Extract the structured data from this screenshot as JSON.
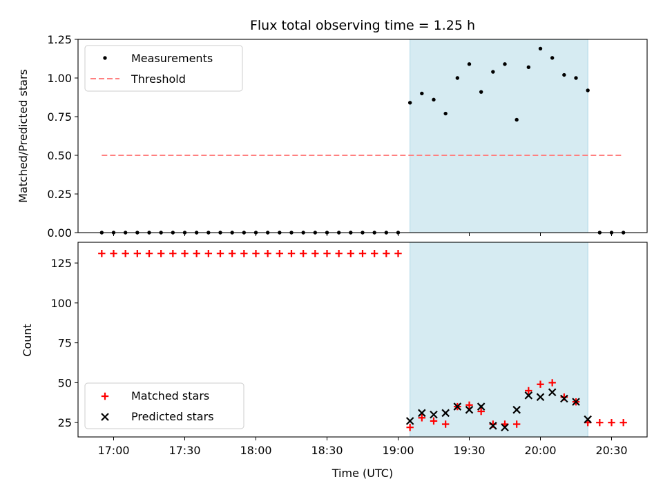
{
  "title": "Flux total observing time = 1.25 h",
  "colors": {
    "shade": "#add8e6",
    "measurement": "#000000",
    "threshold": "#ff8080",
    "matched": "#ff0000",
    "predicted": "#000000"
  },
  "chart_data": [
    {
      "type": "scatter",
      "panel": "top",
      "ylabel": "Matched/Predicted stars",
      "ylim": [
        0,
        1.25
      ],
      "yticks": [
        "0.00",
        "0.25",
        "0.50",
        "0.75",
        "1.00",
        "1.25"
      ],
      "legend": {
        "placement": "upper-left",
        "entries": [
          "Measurements",
          "Threshold"
        ]
      },
      "shaded_span": [
        "19:05",
        "20:20"
      ],
      "threshold": {
        "name": "Threshold",
        "y": 0.5,
        "x_range": [
          "16:55",
          "20:35"
        ]
      },
      "series": [
        {
          "name": "Measurements",
          "x": [
            "16:55",
            "17:00",
            "17:05",
            "17:10",
            "17:15",
            "17:20",
            "17:25",
            "17:30",
            "17:35",
            "17:40",
            "17:45",
            "17:50",
            "17:55",
            "18:00",
            "18:05",
            "18:10",
            "18:15",
            "18:20",
            "18:25",
            "18:30",
            "18:35",
            "18:40",
            "18:45",
            "18:50",
            "18:55",
            "19:00",
            "19:05",
            "19:10",
            "19:15",
            "19:20",
            "19:25",
            "19:30",
            "19:35",
            "19:40",
            "19:45",
            "19:50",
            "19:55",
            "20:00",
            "20:05",
            "20:10",
            "20:15",
            "20:20",
            "20:25",
            "20:30",
            "20:35"
          ],
          "values": [
            0,
            0,
            0,
            0,
            0,
            0,
            0,
            0,
            0,
            0,
            0,
            0,
            0,
            0,
            0,
            0,
            0,
            0,
            0,
            0,
            0,
            0,
            0,
            0,
            0,
            0,
            0.84,
            0.9,
            0.86,
            0.77,
            1.0,
            1.09,
            0.91,
            1.04,
            1.09,
            0.73,
            1.07,
            1.19,
            1.13,
            1.02,
            1.0,
            0.92,
            0,
            0,
            0
          ]
        }
      ]
    },
    {
      "type": "scatter",
      "panel": "bottom",
      "ylabel": "Count",
      "xlabel": "Time (UTC)",
      "ylim": [
        16,
        138
      ],
      "yticks": [
        "25",
        "50",
        "75",
        "100",
        "125"
      ],
      "xticks": [
        "17:00",
        "17:30",
        "18:00",
        "18:30",
        "19:00",
        "19:30",
        "20:00",
        "20:30"
      ],
      "legend": {
        "placement": "lower-left",
        "entries": [
          "Matched stars",
          "Predicted stars"
        ]
      },
      "shaded_span": [
        "19:05",
        "20:20"
      ],
      "series": [
        {
          "name": "Matched stars",
          "x": [
            "16:55",
            "17:00",
            "17:05",
            "17:10",
            "17:15",
            "17:20",
            "17:25",
            "17:30",
            "17:35",
            "17:40",
            "17:45",
            "17:50",
            "17:55",
            "18:00",
            "18:05",
            "18:10",
            "18:15",
            "18:20",
            "18:25",
            "18:30",
            "18:35",
            "18:40",
            "18:45",
            "18:50",
            "18:55",
            "19:00",
            "19:05",
            "19:10",
            "19:15",
            "19:20",
            "19:25",
            "19:30",
            "19:35",
            "19:40",
            "19:45",
            "19:50",
            "19:55",
            "20:00",
            "20:05",
            "20:10",
            "20:15",
            "20:20",
            "20:25",
            "20:30",
            "20:35"
          ],
          "values": [
            131,
            131,
            131,
            131,
            131,
            131,
            131,
            131,
            131,
            131,
            131,
            131,
            131,
            131,
            131,
            131,
            131,
            131,
            131,
            131,
            131,
            131,
            131,
            131,
            131,
            131,
            22,
            28,
            26,
            24,
            35,
            36,
            32,
            24,
            24,
            24,
            45,
            49,
            50,
            41,
            38,
            25,
            25,
            25,
            25
          ]
        },
        {
          "name": "Predicted stars",
          "x": [
            "19:05",
            "19:10",
            "19:15",
            "19:20",
            "19:25",
            "19:30",
            "19:35",
            "19:40",
            "19:45",
            "19:50",
            "19:55",
            "20:00",
            "20:05",
            "20:10",
            "20:15",
            "20:20"
          ],
          "values": [
            26,
            31,
            30,
            31,
            35,
            33,
            35,
            23,
            22,
            33,
            42,
            41,
            44,
            40,
            38,
            27
          ]
        }
      ]
    }
  ]
}
